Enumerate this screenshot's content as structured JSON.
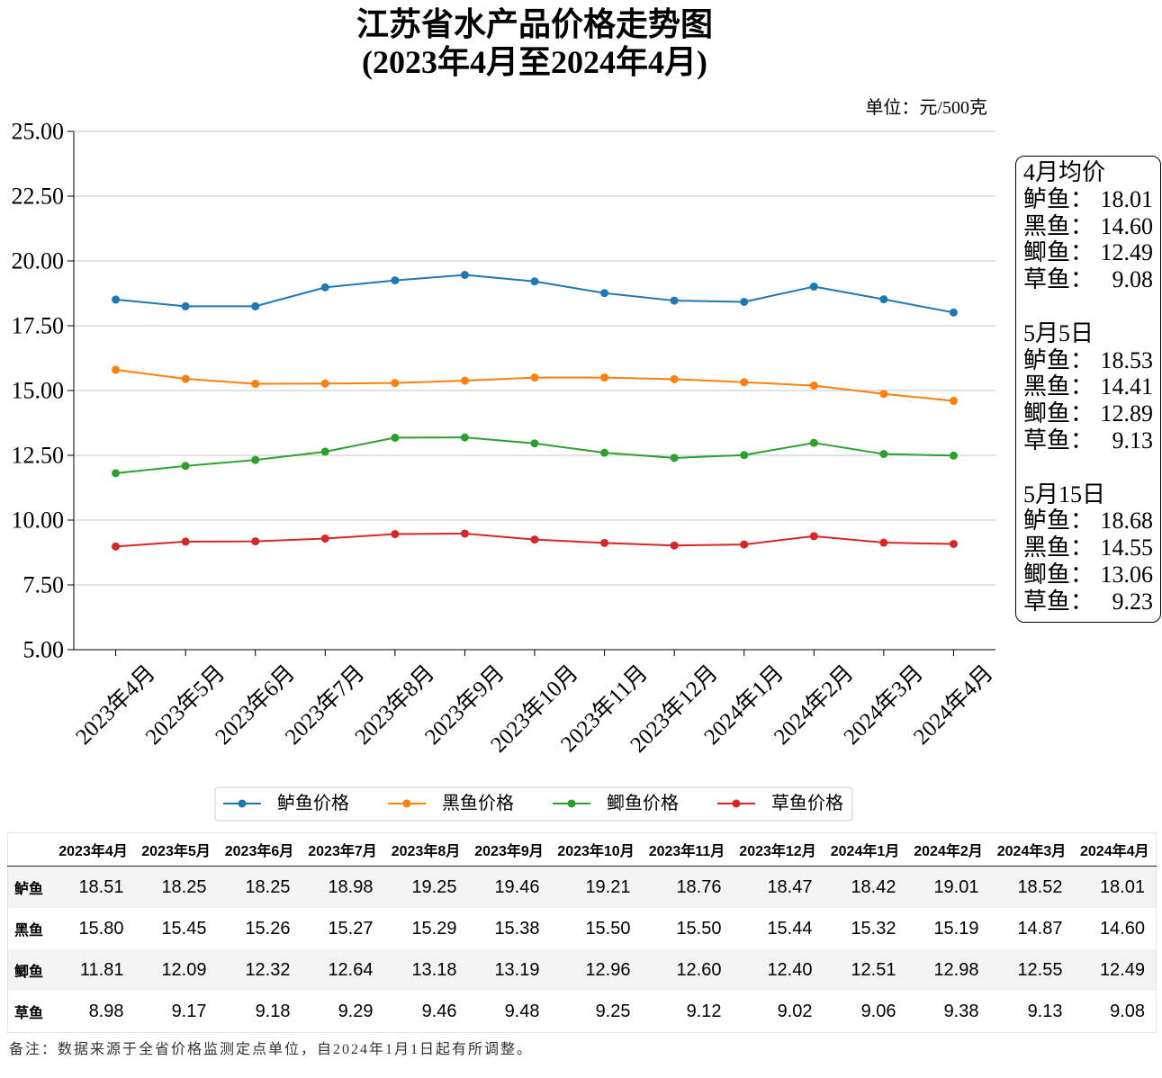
{
  "chart_data": {
    "type": "line",
    "title": "江苏省水产品价格走势图",
    "subtitle": "(2023年4月至2024年4月)",
    "categories": [
      "2023年4月",
      "2023年5月",
      "2023年6月",
      "2023年7月",
      "2023年8月",
      "2023年9月",
      "2023年10月",
      "2023年11月",
      "2023年12月",
      "2024年1月",
      "2024年2月",
      "2024年3月",
      "2024年4月"
    ],
    "series": [
      {
        "name": "鲈鱼价格",
        "color": "#1f77b4",
        "values": [
          18.51,
          18.25,
          18.25,
          18.98,
          19.25,
          19.46,
          19.21,
          18.76,
          18.47,
          18.42,
          19.01,
          18.52,
          18.01
        ]
      },
      {
        "name": "黑鱼价格",
        "color": "#ff7f0e",
        "values": [
          15.8,
          15.45,
          15.26,
          15.27,
          15.29,
          15.38,
          15.5,
          15.5,
          15.44,
          15.32,
          15.19,
          14.87,
          14.6
        ]
      },
      {
        "name": "鲫鱼价格",
        "color": "#2ca02c",
        "values": [
          11.81,
          12.09,
          12.32,
          12.64,
          13.18,
          13.19,
          12.96,
          12.6,
          12.4,
          12.51,
          12.98,
          12.55,
          12.49
        ]
      },
      {
        "name": "草鱼价格",
        "color": "#d62728",
        "values": [
          8.98,
          9.17,
          9.18,
          9.29,
          9.46,
          9.48,
          9.25,
          9.12,
          9.02,
          9.06,
          9.38,
          9.13,
          9.08
        ]
      }
    ],
    "ylim": [
      5,
      25
    ],
    "yticks": [
      "5.00",
      "7.50",
      "10.00",
      "12.50",
      "15.00",
      "17.50",
      "20.00",
      "22.50",
      "25.00"
    ],
    "grid": true,
    "legend": "bottom"
  },
  "unit_label": "单位：元/500克",
  "annotation": {
    "groups": [
      {
        "heading": "4月均价",
        "items": [
          {
            "label": "鲈鱼：",
            "value": "18.01"
          },
          {
            "label": "黑鱼：",
            "value": "14.60"
          },
          {
            "label": "鲫鱼：",
            "value": "12.49"
          },
          {
            "label": "草鱼：",
            "value": "9.08"
          }
        ]
      },
      {
        "heading": "5月5日",
        "items": [
          {
            "label": "鲈鱼：",
            "value": "18.53"
          },
          {
            "label": "黑鱼：",
            "value": "14.41"
          },
          {
            "label": "鲫鱼：",
            "value": "12.89"
          },
          {
            "label": "草鱼：",
            "value": "9.13"
          }
        ]
      },
      {
        "heading": "5月15日",
        "items": [
          {
            "label": "鲈鱼：",
            "value": "18.68"
          },
          {
            "label": "黑鱼：",
            "value": "14.55"
          },
          {
            "label": "鲫鱼：",
            "value": "13.06"
          },
          {
            "label": "草鱼：",
            "value": "9.23"
          }
        ]
      }
    ]
  },
  "table": {
    "columns": [
      "2023年4月",
      "2023年5月",
      "2023年6月",
      "2023年7月",
      "2023年8月",
      "2023年9月",
      "2023年10月",
      "2023年11月",
      "2023年12月",
      "2024年1月",
      "2024年2月",
      "2024年3月",
      "2024年4月"
    ],
    "rows": [
      {
        "name": "鲈鱼",
        "values": [
          "18.51",
          "18.25",
          "18.25",
          "18.98",
          "19.25",
          "19.46",
          "19.21",
          "18.76",
          "18.47",
          "18.42",
          "19.01",
          "18.52",
          "18.01"
        ]
      },
      {
        "name": "黑鱼",
        "values": [
          "15.80",
          "15.45",
          "15.26",
          "15.27",
          "15.29",
          "15.38",
          "15.50",
          "15.50",
          "15.44",
          "15.32",
          "15.19",
          "14.87",
          "14.60"
        ]
      },
      {
        "name": "鲫鱼",
        "values": [
          "11.81",
          "12.09",
          "12.32",
          "12.64",
          "13.18",
          "13.19",
          "12.96",
          "12.60",
          "12.40",
          "12.51",
          "12.98",
          "12.55",
          "12.49"
        ]
      },
      {
        "name": "草鱼",
        "values": [
          "8.98",
          "9.17",
          "9.18",
          "9.29",
          "9.46",
          "9.48",
          "9.25",
          "9.12",
          "9.02",
          "9.06",
          "9.38",
          "9.13",
          "9.08"
        ]
      }
    ]
  },
  "footnote": "备注：数据来源于全省价格监测定点单位，自2024年1月1日起有所调整。"
}
